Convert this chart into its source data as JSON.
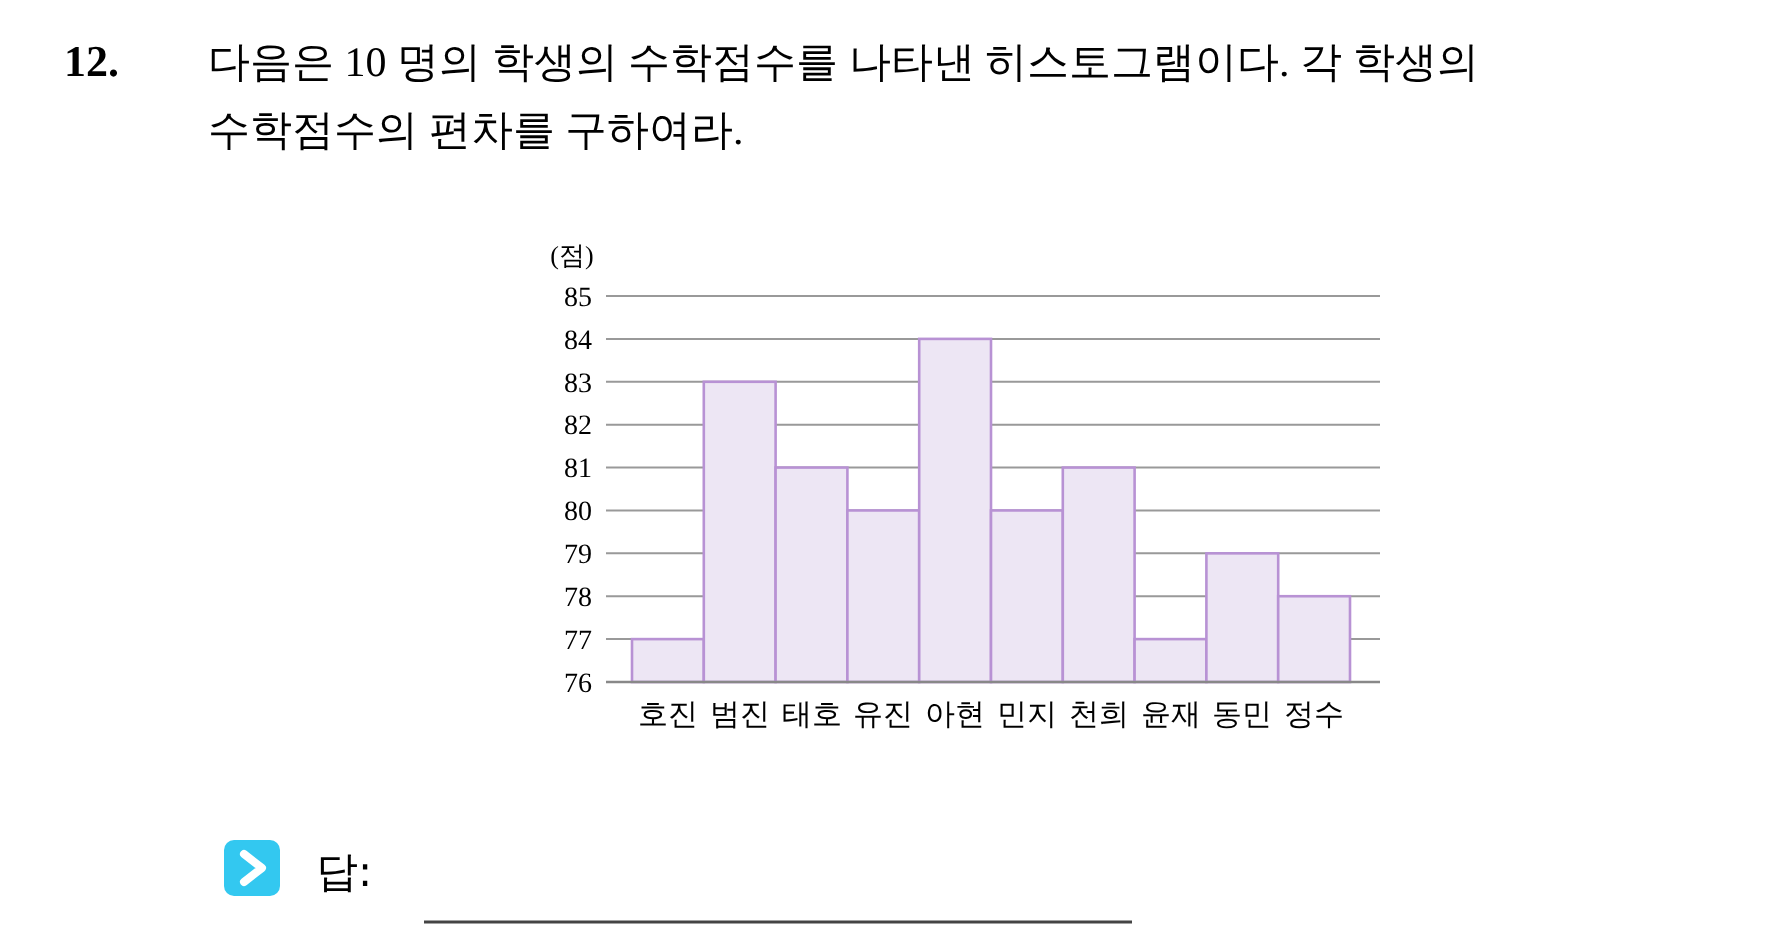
{
  "chart_data": {
    "type": "bar",
    "title": "다음은 10 명의 학생의 수학점수를 나타낸 히스토그램이다. 각 학생의 수학점수의 편차를 구하여라.",
    "ylabel": "(점)",
    "categories": [
      "호진",
      "범진",
      "태호",
      "유진",
      "아현",
      "민지",
      "천희",
      "윤재",
      "동민",
      "정수"
    ],
    "values": [
      77,
      83,
      81,
      80,
      84,
      80,
      81,
      77,
      79,
      78
    ],
    "color": "#ede6f4",
    "ylim": [
      76,
      85
    ],
    "yticks": [
      76,
      77,
      78,
      79,
      80,
      81,
      82,
      83,
      84,
      85
    ],
    "grid": "y",
    "annotations": [
      "12.",
      "답:"
    ]
  }
}
